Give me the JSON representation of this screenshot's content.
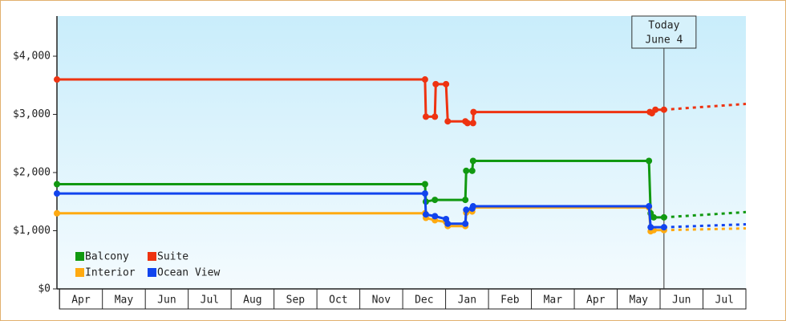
{
  "chart_data": {
    "type": "line",
    "step_markers": true,
    "xlim": [
      -0.06,
      16
    ],
    "xticks": [
      {
        "value": 0,
        "label": "Apr"
      },
      {
        "value": 1,
        "label": "May"
      },
      {
        "value": 2,
        "label": "Jun"
      },
      {
        "value": 3,
        "label": "Jul"
      },
      {
        "value": 4,
        "label": "Aug"
      },
      {
        "value": 5,
        "label": "Sep"
      },
      {
        "value": 6,
        "label": "Oct"
      },
      {
        "value": 7,
        "label": "Nov"
      },
      {
        "value": 8,
        "label": "Dec"
      },
      {
        "value": 9,
        "label": "Jan"
      },
      {
        "value": 10,
        "label": "Feb"
      },
      {
        "value": 11,
        "label": "Mar"
      },
      {
        "value": 12,
        "label": "Apr"
      },
      {
        "value": 13,
        "label": "May"
      },
      {
        "value": 14,
        "label": "Jun"
      },
      {
        "value": 15,
        "label": "Jul"
      }
    ],
    "ylim": [
      0,
      4690
    ],
    "yticks": [
      {
        "value": 0,
        "label": "$0"
      },
      {
        "value": 1000,
        "label": "$1,000"
      },
      {
        "value": 2000,
        "label": "$2,000"
      },
      {
        "value": 3000,
        "label": "$3,000"
      },
      {
        "value": 4000,
        "label": "$4,000"
      }
    ],
    "today": {
      "x": 14.09,
      "label": [
        "Today",
        "June 4"
      ]
    },
    "legend": "lower left",
    "series": [
      {
        "name": "Balcony",
        "color": "#119911",
        "x": [
          -0.06,
          8.52,
          8.54,
          8.75,
          9.46,
          9.48,
          9.62,
          9.64,
          13.74,
          13.78,
          13.85,
          14.09
        ],
        "values": [
          1800,
          1800,
          1500,
          1530,
          1530,
          2030,
          2030,
          2200,
          2200,
          1300,
          1230,
          1230
        ],
        "forecast": {
          "x": [
            14.09,
            16
          ],
          "values": [
            1230,
            1320
          ]
        }
      },
      {
        "name": "Interior",
        "color": "#ffaa11",
        "x": [
          -0.06,
          8.52,
          8.54,
          8.75,
          9.01,
          9.05,
          9.46,
          9.48,
          9.62,
          9.64,
          13.74,
          13.78,
          13.85,
          14.09
        ],
        "values": [
          1300,
          1300,
          1220,
          1180,
          1150,
          1080,
          1080,
          1310,
          1330,
          1400,
          1400,
          990,
          1010,
          1010
        ],
        "forecast": {
          "x": [
            14.09,
            16
          ],
          "values": [
            1010,
            1040
          ]
        }
      },
      {
        "name": "Suite",
        "color": "#ee3311",
        "x": [
          -0.06,
          8.52,
          8.54,
          8.75,
          8.77,
          9.01,
          9.05,
          9.46,
          9.51,
          9.64,
          9.65,
          13.76,
          13.81,
          13.89,
          14.09
        ],
        "values": [
          3600,
          3600,
          2960,
          2960,
          3520,
          3520,
          2880,
          2880,
          2850,
          2850,
          3040,
          3040,
          3020,
          3080,
          3080
        ],
        "forecast": {
          "x": [
            14.09,
            16
          ],
          "values": [
            3080,
            3180
          ]
        }
      },
      {
        "name": "Ocean View",
        "color": "#1144ee",
        "x": [
          -0.06,
          8.52,
          8.54,
          8.75,
          9.01,
          9.05,
          9.46,
          9.48,
          9.62,
          9.64,
          13.74,
          13.78,
          14.09
        ],
        "values": [
          1640,
          1640,
          1280,
          1250,
          1200,
          1120,
          1120,
          1360,
          1380,
          1420,
          1420,
          1060,
          1060
        ],
        "forecast": {
          "x": [
            14.09,
            16
          ],
          "values": [
            1060,
            1110
          ]
        }
      }
    ]
  }
}
